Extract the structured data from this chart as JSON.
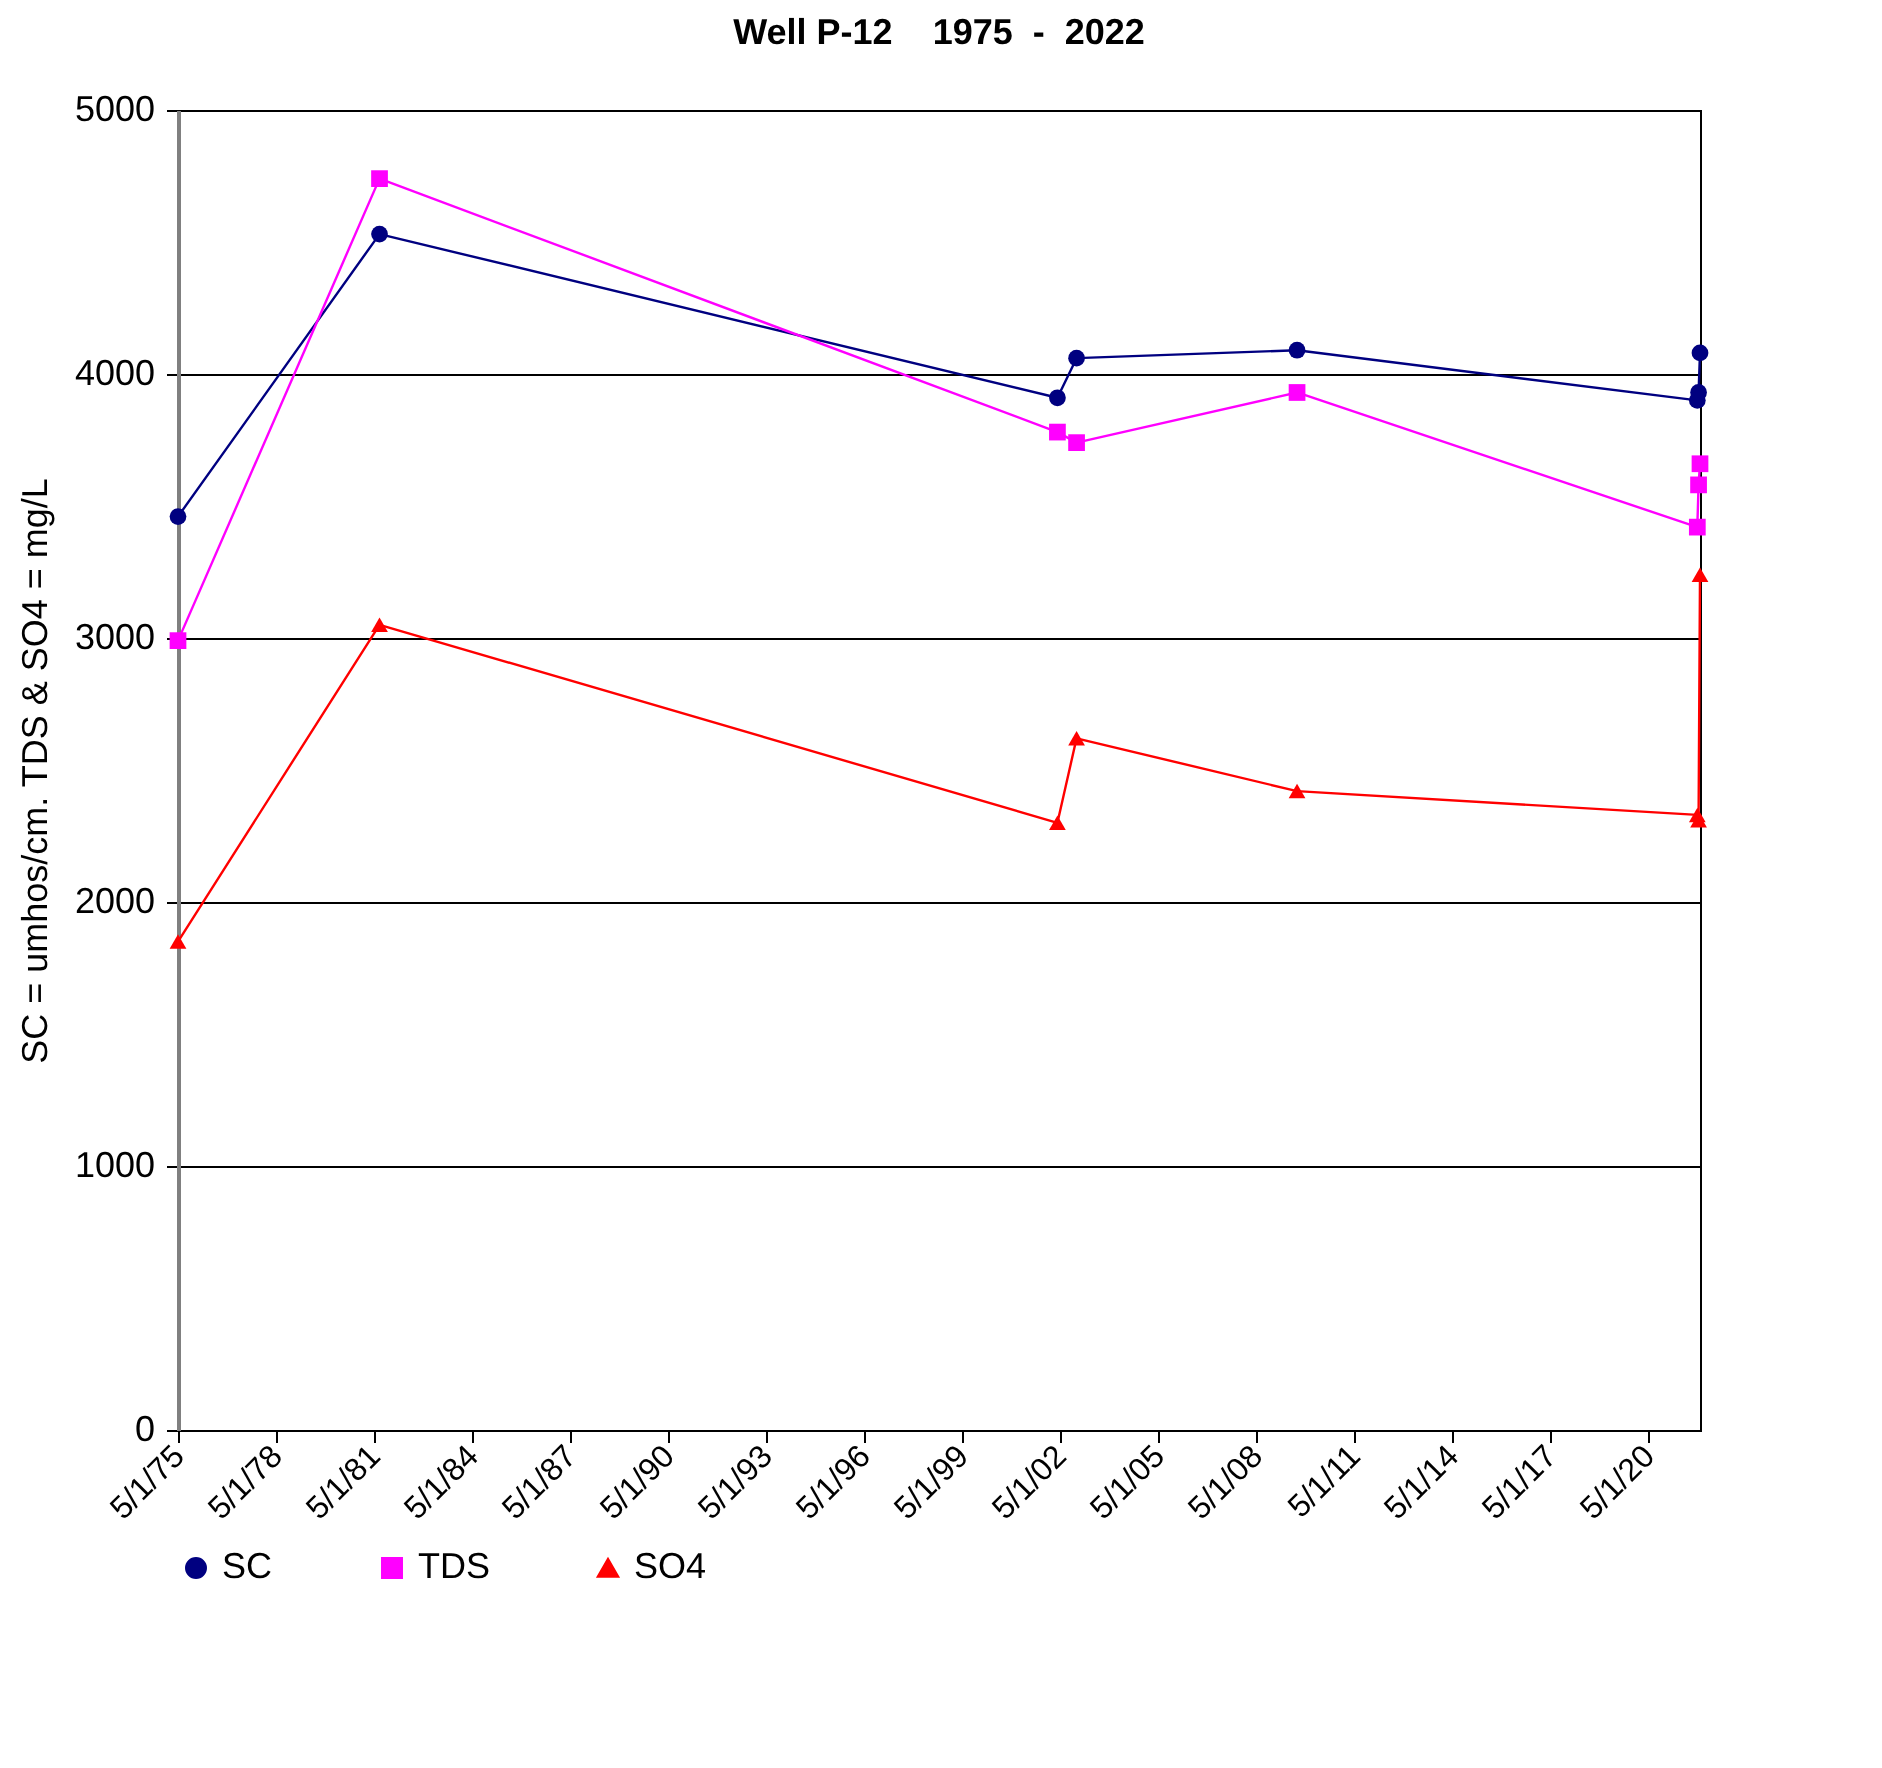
{
  "chart_data": {
    "type": "line",
    "title": "Well P-12    1975  -  2022",
    "ylabel": "SC = umhos/cm. TDS & SO4 = mg/L",
    "ylim": [
      0,
      5000
    ],
    "yticks": [
      0,
      1000,
      2000,
      3000,
      4000,
      5000
    ],
    "grid": "y",
    "legend": "bottom",
    "xlim": [
      "1975-05-01",
      "2021-12-01"
    ],
    "xticks": [
      {
        "value": "1975-05-01",
        "label": "5/1/75"
      },
      {
        "value": "1978-05-01",
        "label": "5/1/78"
      },
      {
        "value": "1981-05-01",
        "label": "5/1/81"
      },
      {
        "value": "1984-05-01",
        "label": "5/1/84"
      },
      {
        "value": "1987-05-01",
        "label": "5/1/87"
      },
      {
        "value": "1990-05-01",
        "label": "5/1/90"
      },
      {
        "value": "1993-05-01",
        "label": "5/1/93"
      },
      {
        "value": "1996-05-01",
        "label": "5/1/96"
      },
      {
        "value": "1999-05-01",
        "label": "5/1/99"
      },
      {
        "value": "2002-05-01",
        "label": "5/1/02"
      },
      {
        "value": "2005-05-01",
        "label": "5/1/05"
      },
      {
        "value": "2008-05-01",
        "label": "5/1/08"
      },
      {
        "value": "2011-05-01",
        "label": "5/1/11"
      },
      {
        "value": "2014-05-01",
        "label": "5/1/14"
      },
      {
        "value": "2017-05-01",
        "label": "5/1/17"
      },
      {
        "value": "2020-05-01",
        "label": "5/1/20"
      }
    ],
    "x": [
      "1975-05-01",
      "1981-07-01",
      "2002-04-01",
      "2002-11-01",
      "2009-08-01",
      "2021-11-01",
      "2021-11-15",
      "2021-12-01"
    ],
    "series": [
      {
        "name": "SC",
        "color": "#000080",
        "marker": "circle",
        "values": [
          3460,
          4530,
          3910,
          4060,
          4090,
          3900,
          3930,
          4080
        ]
      },
      {
        "name": "TDS",
        "color": "#ff00ff",
        "marker": "square",
        "values": [
          2990,
          4740,
          3780,
          3740,
          3930,
          3420,
          3580,
          3660
        ]
      },
      {
        "name": "SO4",
        "color": "#ff0000",
        "marker": "triangle",
        "values": [
          1850,
          3050,
          2300,
          2620,
          2420,
          2330,
          2310,
          3240
        ]
      }
    ]
  }
}
